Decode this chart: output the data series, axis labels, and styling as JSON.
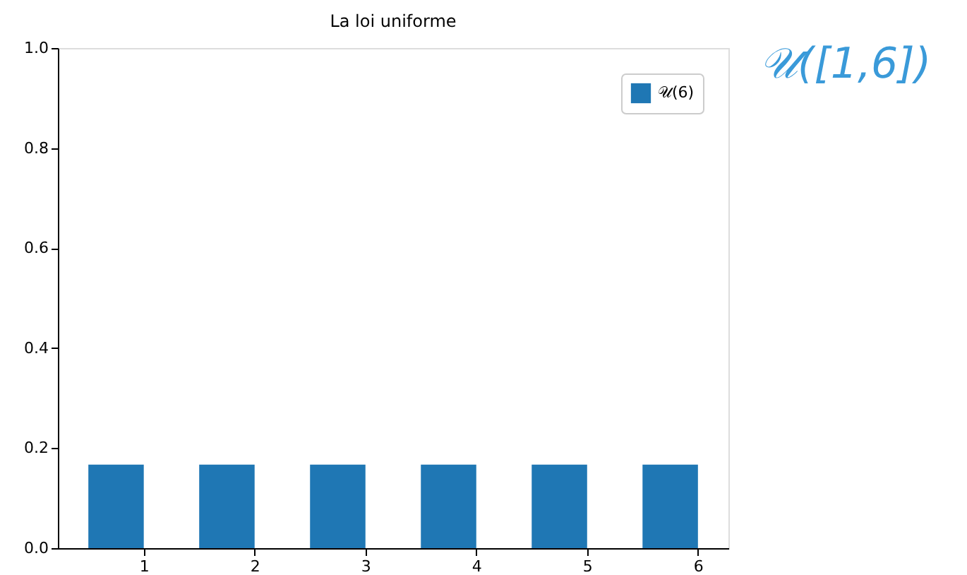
{
  "chart_data": {
    "type": "bar",
    "title": "La loi uniforme",
    "x": [
      0.75,
      1.75,
      2.75,
      3.75,
      4.75,
      5.75
    ],
    "series": [
      {
        "name": "𝒰(6)",
        "color": "#1f77b4",
        "values": [
          0.167,
          0.167,
          0.167,
          0.167,
          0.167,
          0.167
        ]
      }
    ],
    "xlim": [
      0.225,
      6.275
    ],
    "xticks": [
      1,
      2,
      3,
      4,
      5,
      6
    ],
    "ylim": [
      0,
      1
    ],
    "yticks": [
      {
        "value": 0,
        "label": "0.0"
      },
      0.2,
      0.4,
      0.6,
      0.8,
      {
        "value": 1,
        "label": "1.0"
      }
    ],
    "legend": "top right",
    "grid": false,
    "annotations": [
      "𝒰([1,6])"
    ]
  }
}
